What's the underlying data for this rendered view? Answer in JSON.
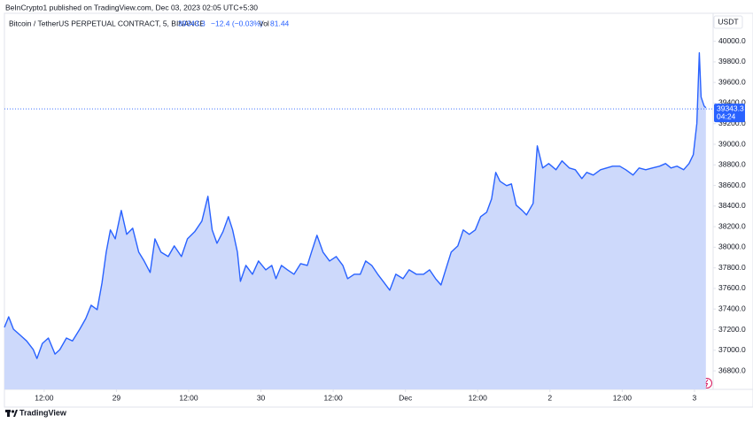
{
  "header": {
    "text": "BeInCrypto1 published on TradingView.com, Dec 03, 2023 02:05 UTC+5:30"
  },
  "footer": {
    "brand": "TradingView"
  },
  "chart_data": {
    "type": "area",
    "title": "Bitcoin / TetherUS PERPETUAL CONTRACT, 5, BINANCE",
    "last_price": 39343.3,
    "change": "−12.4 (−0.03%)",
    "volume_label": "Vol",
    "volume": 81.44,
    "countdown": "04:24",
    "currency": "USDT",
    "color": "#2962ff",
    "fill": "#cdd9fb",
    "x": [
      5.4,
      6.1,
      6.9,
      7.9,
      9.1,
      10.2,
      10.8,
      11.7,
      12.7,
      13.8,
      14.6,
      15.7,
      16.7,
      17.9,
      18.9,
      19.8,
      20.8,
      21.6,
      22.3,
      23.0,
      23.8,
      24.8,
      25.7,
      26.7,
      27.7,
      28.6,
      29.6,
      30.4,
      31.4,
      32.6,
      33.6,
      34.8,
      35.8,
      37.0,
      38.2,
      39.2,
      39.9,
      40.7,
      41.7,
      42.6,
      43.3,
      44.1,
      44.6,
      45.5,
      46.6,
      47.6,
      48.8,
      49.8,
      50.5,
      51.4,
      52.4,
      53.5,
      54.6,
      55.7,
      56.4,
      57.3,
      58.3,
      59.4,
      60.5,
      61.6,
      62.4,
      63.5,
      64.5,
      65.4,
      66.4,
      67.4,
      68.3,
      69.4,
      70.4,
      71.6,
      72.6,
      73.8,
      75.0,
      76.0,
      77.0,
      77.9,
      78.9,
      79.6,
      80.7,
      81.6,
      82.6,
      83.6,
      84.5,
      85.5,
      86.3,
      87.0,
      87.7,
      88.8,
      89.6,
      90.4,
      91.4,
      92.1,
      93.2,
      93.9,
      94.8,
      95.8,
      97.0,
      98.0,
      99.2,
      100.2,
      101.3,
      102.1,
      103.2,
      104.4,
      105.4,
      106.4,
      107.6,
      108.6,
      109.8,
      110.8,
      111.9,
      113.0,
      114.2,
      115.2,
      116.1,
      117.1,
      118.2,
      119.1,
      119.8,
      120.4,
      120.8,
      121.1,
      121.6,
      121.9
    ],
    "values": [
      37222,
      37325,
      37204,
      37153,
      37090,
      37006,
      36920,
      37066,
      37118,
      36963,
      37006,
      37118,
      37090,
      37204,
      37307,
      37437,
      37394,
      37652,
      37953,
      38168,
      38082,
      38357,
      38125,
      38185,
      37953,
      37867,
      37755,
      38082,
      37953,
      37910,
      38013,
      37910,
      38082,
      38151,
      38254,
      38495,
      38168,
      38039,
      38151,
      38297,
      38168,
      37953,
      37669,
      37824,
      37738,
      37867,
      37781,
      37824,
      37695,
      37824,
      37781,
      37738,
      37841,
      37824,
      37953,
      38116,
      37953,
      37867,
      37910,
      37824,
      37695,
      37738,
      37738,
      37867,
      37824,
      37738,
      37669,
      37583,
      37738,
      37695,
      37781,
      37738,
      37738,
      37781,
      37695,
      37634,
      37824,
      37953,
      38013,
      38168,
      38125,
      38168,
      38297,
      38340,
      38469,
      38727,
      38641,
      38598,
      38615,
      38409,
      38357,
      38314,
      38426,
      38985,
      38770,
      38813,
      38753,
      38839,
      38770,
      38753,
      38667,
      38727,
      38701,
      38753,
      38770,
      38787,
      38787,
      38753,
      38701,
      38770,
      38753,
      38770,
      38787,
      38813,
      38770,
      38787,
      38753,
      38813,
      38899,
      39200,
      39888,
      39458,
      39372,
      39355
    ],
    "xlim": [
      5.4,
      123.1
    ],
    "xticks": [
      {
        "value": 12,
        "label": "12:00"
      },
      {
        "value": 24,
        "label": "29"
      },
      {
        "value": 36,
        "label": "12:00"
      },
      {
        "value": 48,
        "label": "30"
      },
      {
        "value": 60,
        "label": "12:00"
      },
      {
        "value": 72,
        "label": "Dec"
      },
      {
        "value": 84,
        "label": "12:00"
      },
      {
        "value": 96,
        "label": "2"
      },
      {
        "value": 108,
        "label": "12:00"
      },
      {
        "value": 120,
        "label": "3"
      }
    ],
    "ylim": [
      36620,
      40100
    ],
    "yticks": [
      {
        "value": 36800,
        "label": "36800.0"
      },
      {
        "value": 37000,
        "label": "37000.0"
      },
      {
        "value": 37200,
        "label": "37200.0"
      },
      {
        "value": 37400,
        "label": "37400.0"
      },
      {
        "value": 37600,
        "label": "37600.0"
      },
      {
        "value": 37800,
        "label": "37800.0"
      },
      {
        "value": 38000,
        "label": "38000.0"
      },
      {
        "value": 38200,
        "label": "38200.0"
      },
      {
        "value": 38400,
        "label": "38400.0"
      },
      {
        "value": 38600,
        "label": "38600.0"
      },
      {
        "value": 38800,
        "label": "38800.0"
      },
      {
        "value": 39000,
        "label": "39000.0"
      },
      {
        "value": 39200,
        "label": "39200.0"
      },
      {
        "value": 39400,
        "label": "39400.0"
      },
      {
        "value": 39600,
        "label": "39600.0"
      },
      {
        "value": 39800,
        "label": "39800.0"
      },
      {
        "value": 40000,
        "label": "40000.0"
      }
    ]
  }
}
